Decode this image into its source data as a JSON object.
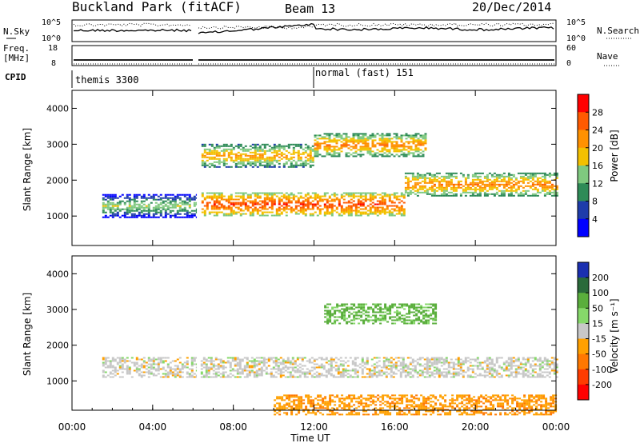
{
  "header": {
    "station": "Buckland Park (fitACF)",
    "beam": "Beam 13",
    "date": "20/Dec/2014"
  },
  "noise_panel": {
    "left_label": "N.Sky",
    "right_label": "N.Search",
    "left_ticks": [
      "10^5",
      "10^0"
    ],
    "right_ticks": [
      "10^5",
      "10^0"
    ]
  },
  "freq_panel": {
    "left_label_1": "Freq.",
    "left_label_2": "[MHz]",
    "right_label": "Nave",
    "left_ticks": [
      "18",
      "8"
    ],
    "right_ticks": [
      "60",
      "0"
    ]
  },
  "cpid": {
    "label": "CPID",
    "segments": [
      {
        "start_hour": 0,
        "end_hour": 12,
        "text": "themis 3300"
      },
      {
        "start_hour": 12,
        "end_hour": 24,
        "text": "normal (fast) 151"
      }
    ]
  },
  "time_axis": {
    "xlabel": "Time UT",
    "tick_labels": [
      "00:00",
      "04:00",
      "08:00",
      "12:00",
      "16:00",
      "20:00",
      "00:00"
    ]
  },
  "power_panel": {
    "ylabel": "Slant Range [km]",
    "ytick_labels": [
      "1000",
      "2000",
      "3000",
      "4000"
    ],
    "colorbar_label": "Power [dB]",
    "colorbar_ticks": [
      "4",
      "8",
      "12",
      "16",
      "20",
      "24",
      "28"
    ],
    "colors": [
      "#0000ff",
      "#1e3caa",
      "#2e8b57",
      "#7fc97f",
      "#f3c000",
      "#ff9100",
      "#ff5a00",
      "#ff0000"
    ]
  },
  "velocity_panel": {
    "ylabel": "Slant Range [km]",
    "ytick_labels": [
      "1000",
      "2000",
      "3000",
      "4000"
    ],
    "colorbar_label": "Velocity [m s⁻¹]",
    "colorbar_ticks": [
      "200",
      "100",
      "50",
      "15",
      "-15",
      "-50",
      "-100",
      "-200"
    ],
    "colors": [
      "#1a2fb0",
      "#2a6a3a",
      "#5aae3c",
      "#86d86a",
      "#c8c8c8",
      "#ffa000",
      "#ff7800",
      "#ff3c00",
      "#ff0000"
    ]
  },
  "chart_data": [
    {
      "type": "heatmap",
      "title": "Power [dB]",
      "xlabel": "Time UT",
      "ylabel": "Slant Range [km]",
      "xlim": [
        0,
        24
      ],
      "ylim": [
        180,
        4500
      ],
      "color_scale": [
        4,
        8,
        12,
        16,
        20,
        24,
        28
      ],
      "features": [
        {
          "start_hour": 1.5,
          "end_hour": 6.2,
          "range_km": 1300,
          "power_db": 16
        },
        {
          "start_hour": 6.3,
          "end_hour": 16.5,
          "range_km": 1350,
          "power_db": 28
        },
        {
          "start_hour": 16.5,
          "end_hour": 24,
          "range_km": 1900,
          "power_db": 24
        },
        {
          "start_hour": 6.3,
          "end_hour": 12,
          "range_km": 2700,
          "power_db": 22
        },
        {
          "start_hour": 12,
          "end_hour": 17.5,
          "range_km": 3000,
          "power_db": 24
        }
      ]
    },
    {
      "type": "heatmap",
      "title": "Velocity [m s⁻¹]",
      "xlabel": "Time UT",
      "ylabel": "Slant Range [km]",
      "xlim": [
        0,
        24
      ],
      "ylim": [
        180,
        4500
      ],
      "color_scale": [
        200,
        100,
        50,
        15,
        -15,
        -50,
        -100,
        -200
      ],
      "features": [
        {
          "start_hour": 1.5,
          "end_hour": 24,
          "range_km": 1400,
          "velocity": 0
        },
        {
          "start_hour": 12.5,
          "end_hour": 18,
          "range_km": 2900,
          "velocity": 60
        },
        {
          "start_hour": 10,
          "end_hour": 24,
          "range_km": 350,
          "velocity": -40
        }
      ]
    }
  ]
}
